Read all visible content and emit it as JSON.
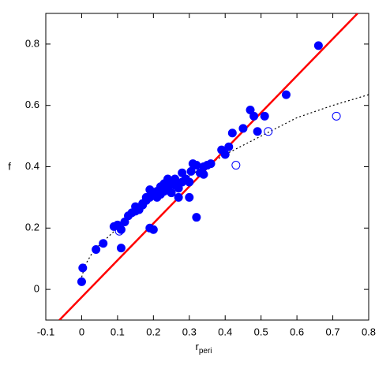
{
  "chart_data": {
    "type": "scatter",
    "xlabel": "r",
    "xlabel_sub": "peri",
    "ylabel": "f",
    "xlim": [
      -0.1,
      0.8
    ],
    "ylim": [
      -0.1,
      0.9
    ],
    "xticks": [
      -0.1,
      0,
      0.1,
      0.2,
      0.3,
      0.4,
      0.5,
      0.6,
      0.7,
      0.8
    ],
    "yticks": [
      0,
      0.2,
      0.4,
      0.6,
      0.8
    ],
    "series": [
      {
        "style": "filled",
        "color": "#0000ff",
        "x": [
          0.0,
          0.003,
          0.04,
          0.06,
          0.09,
          0.1,
          0.11,
          0.11,
          0.12,
          0.13,
          0.14,
          0.15,
          0.16,
          0.17,
          0.18,
          0.19,
          0.19,
          0.2,
          0.19,
          0.2,
          0.21,
          0.21,
          0.22,
          0.22,
          0.23,
          0.23,
          0.24,
          0.25,
          0.25,
          0.26,
          0.27,
          0.27,
          0.28,
          0.28,
          0.29,
          0.3,
          0.3,
          0.305,
          0.31,
          0.32,
          0.32,
          0.33,
          0.34,
          0.34,
          0.35,
          0.36,
          0.39,
          0.4,
          0.41,
          0.42,
          0.45,
          0.47,
          0.48,
          0.49,
          0.51,
          0.57,
          0.66,
          0.17,
          0.15,
          0.24,
          0.18,
          0.26
        ],
        "values": [
          0.025,
          0.07,
          0.13,
          0.15,
          0.205,
          0.21,
          0.135,
          0.195,
          0.22,
          0.24,
          0.25,
          0.27,
          0.26,
          0.275,
          0.29,
          0.3,
          0.2,
          0.195,
          0.325,
          0.31,
          0.3,
          0.32,
          0.335,
          0.31,
          0.345,
          0.32,
          0.33,
          0.35,
          0.315,
          0.34,
          0.3,
          0.33,
          0.38,
          0.35,
          0.36,
          0.35,
          0.3,
          0.385,
          0.41,
          0.405,
          0.235,
          0.38,
          0.4,
          0.375,
          0.405,
          0.41,
          0.455,
          0.44,
          0.465,
          0.51,
          0.525,
          0.585,
          0.565,
          0.515,
          0.565,
          0.635,
          0.795,
          0.28,
          0.255,
          0.36,
          0.3,
          0.36
        ]
      },
      {
        "style": "open",
        "color": "#0000ff",
        "x": [
          0.105,
          0.43,
          0.52,
          0.71
        ],
        "values": [
          0.19,
          0.405,
          0.515,
          0.565
        ]
      },
      {
        "style": "line",
        "color": "#ff0000",
        "x": [
          -0.062,
          0.769
        ],
        "values": [
          -0.1,
          0.9
        ]
      },
      {
        "style": "dotted",
        "color": "#000000",
        "x": [
          0.0,
          0.01,
          0.03,
          0.05,
          0.1,
          0.2,
          0.3,
          0.4,
          0.5,
          0.6,
          0.7,
          0.8
        ],
        "values": [
          0.04,
          0.08,
          0.12,
          0.145,
          0.2,
          0.3,
          0.37,
          0.44,
          0.5,
          0.56,
          0.6,
          0.635
        ]
      }
    ]
  }
}
